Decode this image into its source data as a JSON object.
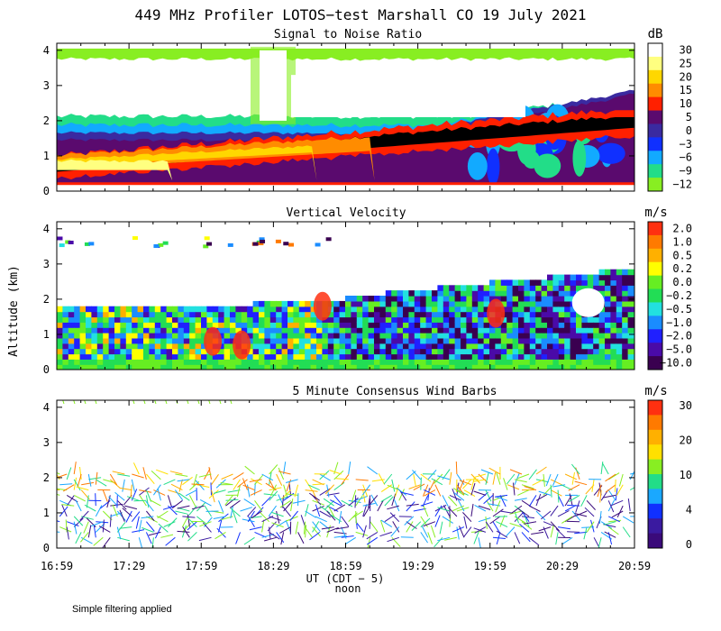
{
  "chart_data": {
    "type": "heatmap",
    "title": "449 MHz Profiler LOTOS−test Marshall CO 19 July 2021",
    "ylabel": "Altitude (km)",
    "xlabel": "UT  (CDT − 5)",
    "x_sublabel": "noon",
    "x_ticks": [
      "16:59",
      "17:29",
      "17:59",
      "18:29",
      "18:59",
      "19:29",
      "19:59",
      "20:29",
      "20:59"
    ],
    "y_ticks": [
      "0",
      "1",
      "2",
      "3",
      "4"
    ],
    "ylim": [
      0,
      4.2
    ],
    "footer": "Simple filtering applied",
    "panels": [
      {
        "subtitle": "Signal to Noise Ratio",
        "unit": "dB",
        "colorbar": [
          {
            "label": "30",
            "color": "#ffffff"
          },
          {
            "label": "25",
            "color": "#ffff80"
          },
          {
            "label": "20",
            "color": "#ffd700"
          },
          {
            "label": "15",
            "color": "#ff8c00"
          },
          {
            "label": "10",
            "color": "#ff2000"
          },
          {
            "label": "5",
            "color": "#5a0a6e"
          },
          {
            "label": "0",
            "color": "#3a2aa0"
          },
          {
            "label": "−3",
            "color": "#1030ff"
          },
          {
            "label": "−6",
            "color": "#12aaff"
          },
          {
            "label": "−9",
            "color": "#22dd88"
          },
          {
            "label": "−12",
            "color": "#88ee22"
          }
        ]
      },
      {
        "subtitle": "Vertical Velocity",
        "unit": "m/s",
        "colorbar": [
          {
            "label": "2.0",
            "color": "#ff3010"
          },
          {
            "label": "1.0",
            "color": "#ff7a00"
          },
          {
            "label": "0.5",
            "color": "#ffb000"
          },
          {
            "label": "0.2",
            "color": "#ffff00"
          },
          {
            "label": "0.0",
            "color": "#66ee22"
          },
          {
            "label": "−0.2",
            "color": "#22dd55"
          },
          {
            "label": "−0.5",
            "color": "#22e0e0"
          },
          {
            "label": "−1.0",
            "color": "#1a8cff"
          },
          {
            "label": "−2.0",
            "color": "#2020ff"
          },
          {
            "label": "−5.0",
            "color": "#4a0aa8"
          },
          {
            "label": "−10.0",
            "color": "#3a0050"
          }
        ]
      },
      {
        "subtitle": "5 Minute Consensus Wind Barbs",
        "unit": "m/s",
        "colorbar": [
          {
            "label": "30",
            "color": "#ff3010"
          },
          {
            "label": "20",
            "color": "#ffb000"
          },
          {
            "label": "10",
            "color": "#88ee22"
          },
          {
            "label": "4",
            "color": "#1aa8ff"
          },
          {
            "label": "0",
            "color": "#3a0a7a"
          }
        ],
        "colorbar_bands": [
          "#ff3010",
          "#ff7a00",
          "#ffb000",
          "#ffe000",
          "#88ee22",
          "#22dd88",
          "#1aa8ff",
          "#1030ff",
          "#3a1aa0",
          "#3a0a7a"
        ]
      }
    ]
  }
}
